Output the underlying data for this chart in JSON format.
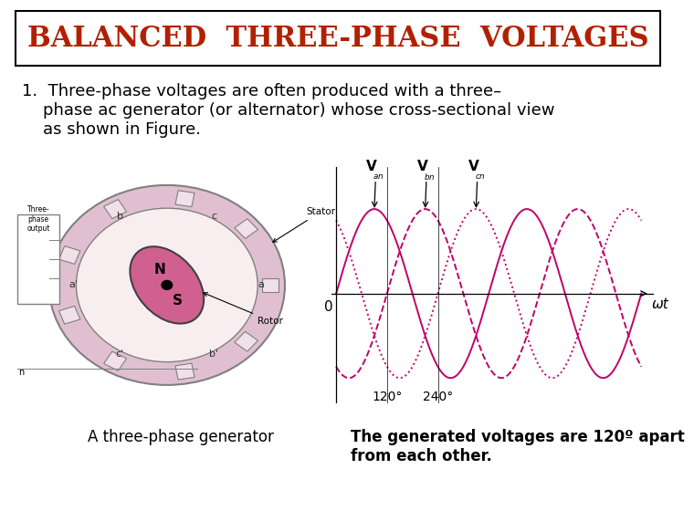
{
  "title": "BALANCED  THREE-PHASE  VOLTAGES",
  "title_color": "#B22000",
  "title_fontsize": 22,
  "title_bg": "#ffffff",
  "body_text": "1.  Three-phase voltages are often produced with a three–\n    phase ac generator (or alternator) whose cross-sectional view\n    as shown in Figure.",
  "body_fontsize": 13,
  "caption_left": "A three-phase generator",
  "caption_right": "The generated voltages are 120º apart\nfrom each other.",
  "caption_fontsize": 12,
  "wave_color": "#C0006A",
  "wave_linewidth": 1.4,
  "bg_color": "#ffffff",
  "zero_label": "0",
  "x120_label": "120°",
  "x240_label": "240°",
  "wt_label": "ωt",
  "Van_label": "V",
  "Van_sub": "an",
  "Vbn_label": "V",
  "Vbn_sub": "bn",
  "Vcn_label": "V",
  "Vcn_sub": "cn"
}
